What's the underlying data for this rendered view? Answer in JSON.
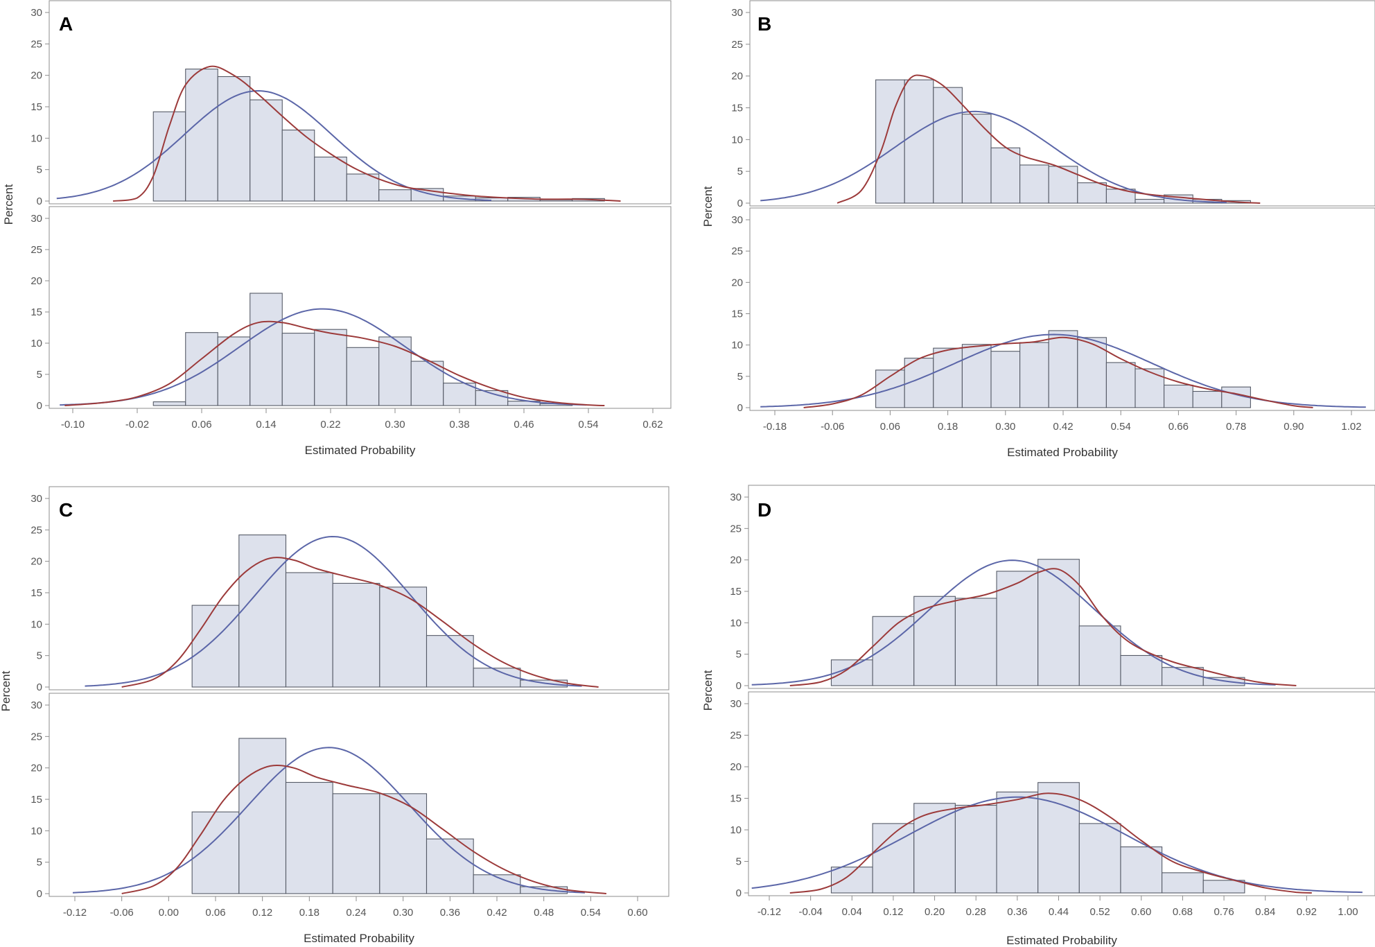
{
  "colors": {
    "bar_fill": "#dde1ec",
    "bar_stroke": "#555a66",
    "normal_curve": "#5b66a8",
    "kernel_curve": "#9c3a3a"
  },
  "chart_data": [
    {
      "panel": "A",
      "type": "bar",
      "xlabel": "Estimated Probability",
      "ylabel": "Percent",
      "x_ticks": [
        "-0.10",
        "-0.02",
        "0.06",
        "0.14",
        "0.22",
        "0.30",
        "0.38",
        "0.46",
        "0.54",
        "0.62"
      ],
      "xlim": [
        -0.12,
        0.64
      ],
      "ylim": [
        0,
        30
      ],
      "y_ticks": [
        0,
        5,
        10,
        15,
        20,
        25,
        30
      ],
      "bin_width": 0.04,
      "subplots": [
        {
          "bins": [
            0.02,
            0.06,
            0.1,
            0.14,
            0.18,
            0.22,
            0.26,
            0.3,
            0.34,
            0.38,
            0.42,
            0.46,
            0.5,
            0.54
          ],
          "values": [
            14.2,
            21.0,
            19.8,
            16.1,
            11.3,
            7.0,
            4.3,
            1.8,
            2.0,
            0.8,
            0.5,
            0.6,
            0.2,
            0.4
          ],
          "normal": {
            "mean": 0.13,
            "sd": 0.091
          },
          "kernel": [
            [
              -0.05,
              0
            ],
            [
              -0.02,
              0.5
            ],
            [
              0.0,
              4
            ],
            [
              0.02,
              12
            ],
            [
              0.04,
              18.5
            ],
            [
              0.07,
              21.4
            ],
            [
              0.1,
              20
            ],
            [
              0.13,
              17
            ],
            [
              0.16,
              13.5
            ],
            [
              0.19,
              10.2
            ],
            [
              0.22,
              7.5
            ],
            [
              0.25,
              5.2
            ],
            [
              0.28,
              3.5
            ],
            [
              0.31,
              2.3
            ],
            [
              0.34,
              1.7
            ],
            [
              0.37,
              1.2
            ],
            [
              0.4,
              0.8
            ],
            [
              0.44,
              0.5
            ],
            [
              0.48,
              0.3
            ],
            [
              0.52,
              0.3
            ],
            [
              0.55,
              0.2
            ],
            [
              0.58,
              0
            ]
          ]
        },
        {
          "bins": [
            0.02,
            0.06,
            0.1,
            0.14,
            0.18,
            0.22,
            0.26,
            0.3,
            0.34,
            0.38,
            0.42,
            0.46,
            0.5
          ],
          "values": [
            0.6,
            11.7,
            11.0,
            18.0,
            11.6,
            12.2,
            9.3,
            11.0,
            7.1,
            3.6,
            2.4,
            0.7,
            0.3
          ],
          "normal": {
            "mean": 0.21,
            "sd": 0.103
          },
          "kernel": [
            [
              -0.11,
              0
            ],
            [
              -0.06,
              0.5
            ],
            [
              -0.02,
              1.4
            ],
            [
              0.02,
              3.5
            ],
            [
              0.06,
              7.5
            ],
            [
              0.1,
              11.5
            ],
            [
              0.13,
              13.3
            ],
            [
              0.16,
              13.3
            ],
            [
              0.19,
              12.4
            ],
            [
              0.22,
              11.6
            ],
            [
              0.26,
              10.8
            ],
            [
              0.3,
              9.5
            ],
            [
              0.34,
              7.3
            ],
            [
              0.38,
              4.8
            ],
            [
              0.42,
              2.8
            ],
            [
              0.46,
              1.3
            ],
            [
              0.5,
              0.5
            ],
            [
              0.54,
              0.1
            ],
            [
              0.56,
              0
            ]
          ]
        }
      ]
    },
    {
      "panel": "B",
      "type": "bar",
      "xlabel": "Estimated Probability",
      "ylabel": "Percent",
      "x_ticks": [
        "-0.18",
        "-0.06",
        "0.06",
        "0.18",
        "0.30",
        "0.42",
        "0.54",
        "0.66",
        "0.78",
        "0.90",
        "1.02"
      ],
      "xlim": [
        -0.21,
        1.05
      ],
      "ylim": [
        0,
        30
      ],
      "y_ticks": [
        0,
        5,
        10,
        15,
        20,
        25,
        30
      ],
      "bin_width": 0.06,
      "subplots": [
        {
          "bins": [
            0.06,
            0.12,
            0.18,
            0.24,
            0.3,
            0.36,
            0.42,
            0.48,
            0.54,
            0.6,
            0.66,
            0.72,
            0.78
          ],
          "values": [
            19.4,
            19.4,
            18.2,
            14.0,
            8.7,
            6.0,
            5.8,
            3.2,
            2.2,
            0.6,
            1.3,
            0.6,
            0.4
          ],
          "normal": {
            "mean": 0.235,
            "sd": 0.166
          },
          "kernel": [
            [
              -0.05,
              0
            ],
            [
              0.0,
              2
            ],
            [
              0.04,
              8
            ],
            [
              0.07,
              15
            ],
            [
              0.1,
              19.5
            ],
            [
              0.13,
              20
            ],
            [
              0.17,
              18.5
            ],
            [
              0.21,
              15.5
            ],
            [
              0.26,
              11.5
            ],
            [
              0.3,
              8.8
            ],
            [
              0.34,
              7.3
            ],
            [
              0.4,
              6.0
            ],
            [
              0.45,
              4.5
            ],
            [
              0.5,
              3.0
            ],
            [
              0.56,
              1.8
            ],
            [
              0.62,
              1.2
            ],
            [
              0.68,
              0.8
            ],
            [
              0.74,
              0.4
            ],
            [
              0.8,
              0.1
            ],
            [
              0.83,
              0
            ]
          ]
        },
        {
          "bins": [
            0.06,
            0.12,
            0.18,
            0.24,
            0.3,
            0.36,
            0.42,
            0.48,
            0.54,
            0.6,
            0.66,
            0.72,
            0.78
          ],
          "values": [
            6.0,
            7.9,
            9.5,
            10.1,
            9.0,
            10.4,
            12.3,
            11.2,
            7.2,
            6.2,
            3.6,
            2.6,
            3.3
          ],
          "normal": {
            "mean": 0.4,
            "sd": 0.205
          },
          "kernel": [
            [
              -0.12,
              0
            ],
            [
              -0.06,
              0.6
            ],
            [
              0.0,
              2
            ],
            [
              0.06,
              5
            ],
            [
              0.12,
              7.8
            ],
            [
              0.18,
              9.2
            ],
            [
              0.24,
              9.8
            ],
            [
              0.3,
              10.2
            ],
            [
              0.36,
              10.5
            ],
            [
              0.42,
              11.2
            ],
            [
              0.48,
              10.2
            ],
            [
              0.54,
              7.8
            ],
            [
              0.6,
              5.7
            ],
            [
              0.66,
              4.1
            ],
            [
              0.72,
              3.0
            ],
            [
              0.78,
              2.2
            ],
            [
              0.84,
              1.2
            ],
            [
              0.9,
              0.3
            ],
            [
              0.94,
              0
            ]
          ]
        }
      ]
    },
    {
      "panel": "C",
      "type": "bar",
      "xlabel": "Estimated Probability",
      "ylabel": "Percent",
      "x_ticks": [
        "-0.12",
        "-0.06",
        "0.00",
        "0.06",
        "0.12",
        "0.18",
        "0.24",
        "0.30",
        "0.36",
        "0.42",
        "0.48",
        "0.54",
        "0.60"
      ],
      "xlim": [
        -0.15,
        0.63
      ],
      "ylim": [
        0,
        30
      ],
      "y_ticks": [
        0,
        5,
        10,
        15,
        20,
        25,
        30
      ],
      "bin_width": 0.06,
      "subplots": [
        {
          "bins": [
            0.06,
            0.12,
            0.18,
            0.24,
            0.3,
            0.36,
            0.42,
            0.48
          ],
          "values": [
            13.0,
            24.2,
            18.2,
            16.5,
            15.9,
            8.2,
            3.0,
            1.1
          ],
          "normal": {
            "mean": 0.21,
            "sd": 0.1
          },
          "kernel": [
            [
              -0.06,
              0
            ],
            [
              -0.02,
              1.2
            ],
            [
              0.01,
              4
            ],
            [
              0.04,
              9
            ],
            [
              0.07,
              14.5
            ],
            [
              0.1,
              18.5
            ],
            [
              0.13,
              20.5
            ],
            [
              0.16,
              20.2
            ],
            [
              0.19,
              18.8
            ],
            [
              0.23,
              17.5
            ],
            [
              0.27,
              16.2
            ],
            [
              0.31,
              14
            ],
            [
              0.35,
              10.5
            ],
            [
              0.39,
              6.8
            ],
            [
              0.43,
              3.8
            ],
            [
              0.47,
              1.8
            ],
            [
              0.51,
              0.6
            ],
            [
              0.55,
              0
            ]
          ]
        },
        {
          "bins": [
            0.06,
            0.12,
            0.18,
            0.24,
            0.3,
            0.36,
            0.42,
            0.48
          ],
          "values": [
            13.0,
            24.7,
            17.7,
            15.9,
            15.9,
            8.7,
            3.0,
            1.1
          ],
          "normal": {
            "mean": 0.205,
            "sd": 0.103
          },
          "kernel": [
            [
              -0.06,
              0
            ],
            [
              -0.02,
              1.2
            ],
            [
              0.01,
              4
            ],
            [
              0.04,
              9.2
            ],
            [
              0.07,
              14.8
            ],
            [
              0.1,
              18.5
            ],
            [
              0.13,
              20.3
            ],
            [
              0.16,
              20
            ],
            [
              0.19,
              18.5
            ],
            [
              0.23,
              17.2
            ],
            [
              0.27,
              16
            ],
            [
              0.31,
              13.8
            ],
            [
              0.35,
              10.3
            ],
            [
              0.39,
              6.7
            ],
            [
              0.43,
              3.8
            ],
            [
              0.47,
              1.8
            ],
            [
              0.51,
              0.6
            ],
            [
              0.56,
              0
            ]
          ]
        }
      ]
    },
    {
      "panel": "D",
      "type": "bar",
      "xlabel": "Estimated Probability",
      "ylabel": "Percent",
      "x_ticks": [
        "-0.12",
        "-0.04",
        "0.04",
        "0.12",
        "0.20",
        "0.28",
        "0.36",
        "0.44",
        "0.52",
        "0.60",
        "0.68",
        "0.76",
        "0.84",
        "0.92",
        "1.00"
      ],
      "xlim": [
        -0.16,
        1.04
      ],
      "ylim": [
        0,
        30
      ],
      "y_ticks": [
        0,
        5,
        10,
        15,
        20,
        25,
        30
      ],
      "bin_width": 0.08,
      "subplots": [
        {
          "bins": [
            0.04,
            0.12,
            0.2,
            0.28,
            0.36,
            0.44,
            0.52,
            0.6,
            0.68,
            0.76
          ],
          "values": [
            4.1,
            11.0,
            14.2,
            13.9,
            18.2,
            20.1,
            9.5,
            4.8,
            2.9,
            1.3
          ],
          "normal": {
            "mean": 0.35,
            "sd": 0.16
          },
          "kernel": [
            [
              -0.08,
              0
            ],
            [
              -0.02,
              0.6
            ],
            [
              0.03,
              2.5
            ],
            [
              0.08,
              6.2
            ],
            [
              0.13,
              10
            ],
            [
              0.18,
              12.2
            ],
            [
              0.24,
              13.5
            ],
            [
              0.3,
              14.5
            ],
            [
              0.36,
              16.3
            ],
            [
              0.4,
              18
            ],
            [
              0.44,
              18.5
            ],
            [
              0.48,
              16
            ],
            [
              0.52,
              11.5
            ],
            [
              0.56,
              8
            ],
            [
              0.6,
              5.8
            ],
            [
              0.66,
              3.8
            ],
            [
              0.72,
              2.5
            ],
            [
              0.78,
              1.3
            ],
            [
              0.84,
              0.4
            ],
            [
              0.9,
              0
            ]
          ]
        },
        {
          "bins": [
            0.04,
            0.12,
            0.2,
            0.28,
            0.36,
            0.44,
            0.52,
            0.6,
            0.68,
            0.76
          ],
          "values": [
            4.1,
            11.0,
            14.2,
            13.9,
            16.0,
            17.5,
            11.0,
            7.3,
            3.2,
            2.0
          ],
          "normal": {
            "mean": 0.36,
            "sd": 0.21
          },
          "kernel": [
            [
              -0.08,
              0
            ],
            [
              -0.02,
              0.6
            ],
            [
              0.03,
              2.5
            ],
            [
              0.08,
              6.3
            ],
            [
              0.13,
              10
            ],
            [
              0.18,
              12.3
            ],
            [
              0.24,
              13.4
            ],
            [
              0.3,
              14
            ],
            [
              0.36,
              14.8
            ],
            [
              0.42,
              15.8
            ],
            [
              0.48,
              14.8
            ],
            [
              0.54,
              12
            ],
            [
              0.6,
              8.3
            ],
            [
              0.66,
              5
            ],
            [
              0.72,
              3.3
            ],
            [
              0.78,
              2
            ],
            [
              0.84,
              0.8
            ],
            [
              0.9,
              0.1
            ],
            [
              0.93,
              0
            ]
          ]
        }
      ]
    }
  ]
}
